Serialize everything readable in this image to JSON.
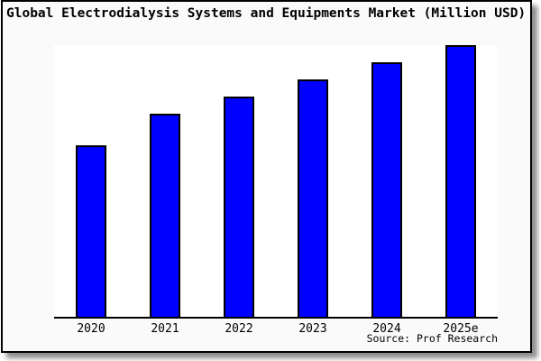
{
  "page": {
    "background": "#ffffff",
    "card_background": "#fafafa",
    "plot_background": "#ffffff",
    "border_color": "#000000"
  },
  "chart_data": {
    "type": "bar",
    "title": "Global Electrodialysis Systems and Equipments Market (Million USD)",
    "categories": [
      "2020",
      "2021",
      "2022",
      "2023",
      "2024",
      "2025e"
    ],
    "values": [
      63.1,
      74.8,
      81.1,
      87.4,
      93.7,
      100
    ],
    "values_unit": "relative bar height, % of tallest (2025e) bar; y-axis has no tick labels",
    "xlabel": "",
    "ylabel": "",
    "ylim": [
      0,
      100
    ],
    "grid": "off",
    "legend": "none",
    "bar_color": "#0000fe",
    "bar_border_color": "#000000",
    "source": "Source: Prof Research"
  }
}
